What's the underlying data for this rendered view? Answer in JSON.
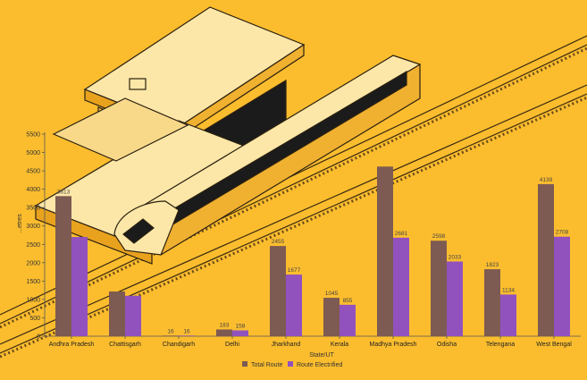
{
  "chart_data": {
    "type": "bar",
    "title": "",
    "xlabel": "State/UT",
    "ylabel": "...etres",
    "ylim": [
      0,
      5500
    ],
    "yticks": [
      0,
      500,
      1000,
      1500,
      2000,
      2500,
      3000,
      3500,
      4000,
      4500,
      5000,
      5500
    ],
    "categories": [
      "Andhra Pradesh",
      "Chattisgarh",
      "Chandigarh",
      "Delhi",
      "Jharkhand",
      "Kerala",
      "Madhya Pradesh",
      "Odisha",
      "Telengana",
      "West Bengal"
    ],
    "series": [
      {
        "name": "Total Route",
        "color": "#7D5A52",
        "values": [
          3813,
          1216,
          16,
          183,
          2455,
          1045,
          4617,
          2598,
          1823,
          4139
        ]
      },
      {
        "name": "Route Electrified",
        "color": "#9152BE",
        "values": [
          2700,
          1100,
          16,
          158,
          1677,
          855,
          2681,
          2033,
          1134,
          2708
        ]
      }
    ],
    "data_labels": [
      [
        "3813",
        "",
        "16",
        "183",
        "2455",
        "1045",
        "",
        "2598",
        "1823",
        "4139"
      ],
      [
        "",
        "",
        "16",
        "158",
        "1677",
        "855",
        "2681",
        "2033",
        "1134",
        "2708"
      ]
    ],
    "cat_label_overrides": {
      "1": "Chattisgarh"
    },
    "grid": false,
    "legend": "bottom-center"
  }
}
